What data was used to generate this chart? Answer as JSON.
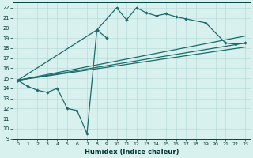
{
  "xlabel": "Humidex (Indice chaleur)",
  "bg_color": "#d8f0ee",
  "line_color": "#1a6b6b",
  "grid_color": "#b8dcd8",
  "xlim": [
    -0.5,
    23.5
  ],
  "ylim": [
    9,
    22.5
  ],
  "xticks": [
    0,
    1,
    2,
    3,
    4,
    5,
    6,
    7,
    8,
    9,
    10,
    11,
    12,
    13,
    14,
    15,
    16,
    17,
    18,
    19,
    20,
    21,
    22,
    23
  ],
  "yticks": [
    9,
    10,
    11,
    12,
    13,
    14,
    15,
    16,
    17,
    18,
    19,
    20,
    21,
    22
  ],
  "series_jagged": {
    "x": [
      0,
      1,
      2,
      3,
      4,
      5,
      6,
      7,
      8,
      9
    ],
    "y": [
      14.8,
      14.2,
      13.8,
      13.6,
      14.0,
      12.0,
      11.8,
      9.5,
      19.8,
      19.0
    ]
  },
  "series_peak": {
    "x": [
      0,
      8,
      10,
      11,
      12,
      13,
      14,
      15,
      16,
      17,
      19,
      21,
      22,
      23
    ],
    "y": [
      14.8,
      19.8,
      22.0,
      20.8,
      22.0,
      21.5,
      21.2,
      21.4,
      21.1,
      20.9,
      20.5,
      18.5,
      18.4,
      18.5
    ]
  },
  "line1": {
    "x": [
      0,
      23
    ],
    "y": [
      14.8,
      19.2
    ]
  },
  "line2": {
    "x": [
      0,
      23
    ],
    "y": [
      14.8,
      18.5
    ]
  },
  "line3": {
    "x": [
      0,
      23
    ],
    "y": [
      14.8,
      18.1
    ]
  }
}
